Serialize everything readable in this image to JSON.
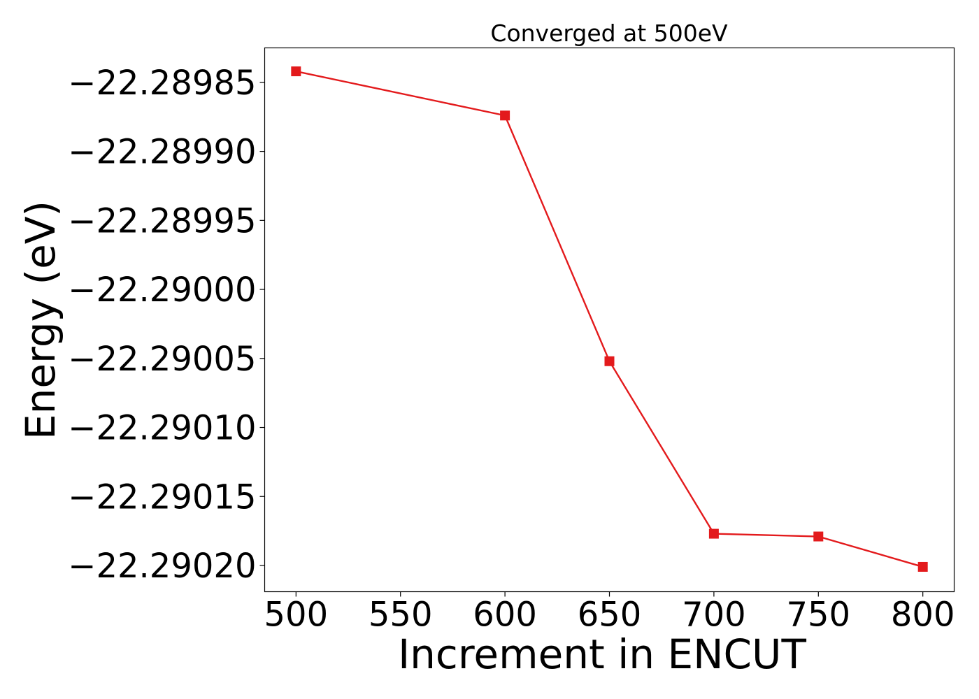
{
  "chart_data": {
    "type": "line",
    "title": "Converged at 500eV",
    "xlabel": "Increment in ENCUT",
    "ylabel": "Energy (eV)",
    "x": [
      500,
      600,
      650,
      700,
      750,
      800
    ],
    "series": [
      {
        "values": [
          -22.289842,
          -22.289874,
          -22.290052,
          -22.290177,
          -22.290179,
          -22.290201
        ],
        "color": "#e31a1c",
        "marker": "square"
      }
    ],
    "x_ticks": [
      "500",
      "550",
      "600",
      "650",
      "700",
      "750",
      "800"
    ],
    "y_ticks": [
      "−22.28985",
      "−22.28990",
      "−22.28995",
      "−22.29000",
      "−22.29005",
      "−22.29010",
      "−22.29015",
      "−22.29020"
    ],
    "x_tick_values": [
      500,
      550,
      600,
      650,
      700,
      750,
      800
    ],
    "y_tick_values": [
      -22.28985,
      -22.2899,
      -22.28995,
      -22.29,
      -22.29005,
      -22.2901,
      -22.29015,
      -22.2902
    ],
    "xlim": [
      485,
      815
    ],
    "ylim": [
      -22.290219,
      -22.289825
    ],
    "grid": false,
    "legend": "none"
  }
}
